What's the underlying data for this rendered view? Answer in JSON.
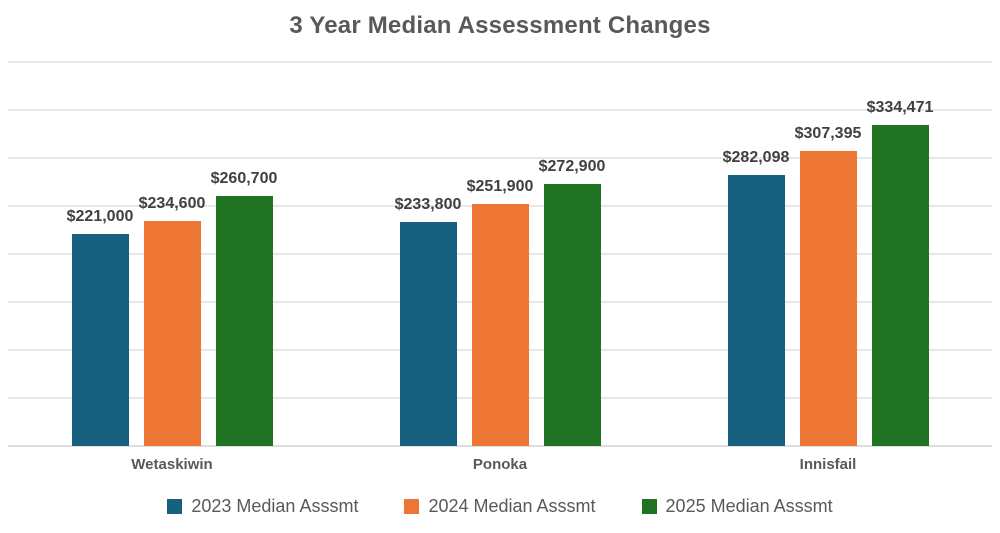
{
  "chart_data": {
    "type": "bar",
    "title": "3 Year Median Assessment Changes",
    "xlabel": "",
    "ylabel": "",
    "categories": [
      "Wetaskiwin",
      "Ponoka",
      "Innisfail"
    ],
    "series": [
      {
        "name": "2023 Median Asssmt",
        "color": "#17607F",
        "values": [
          221000,
          233800,
          282098
        ],
        "labels": [
          "$221,000",
          "$233,800",
          "$282,098"
        ]
      },
      {
        "name": "2024 Median Asssmt",
        "color": "#ED7634",
        "values": [
          234600,
          251900,
          307395
        ],
        "labels": [
          "$234,600",
          "$251,900",
          "$307,395"
        ]
      },
      {
        "name": "2025 Median Asssmt",
        "color": "#1F7323",
        "values": [
          260700,
          272900,
          334471
        ],
        "labels": [
          "$260,700",
          "$272,900",
          "$334,471"
        ]
      }
    ],
    "ylim": [
      0,
      400000
    ],
    "gridline_interval": 50000,
    "grid": true,
    "y_tick_labels_visible": false,
    "legend_position": "bottom"
  },
  "colors": {
    "background": "#ffffff",
    "gridline": "#e7e7e7",
    "title_text": "#595959",
    "data_label_text": "#404040",
    "category_label_text": "#595959",
    "legend_text": "#595959"
  }
}
